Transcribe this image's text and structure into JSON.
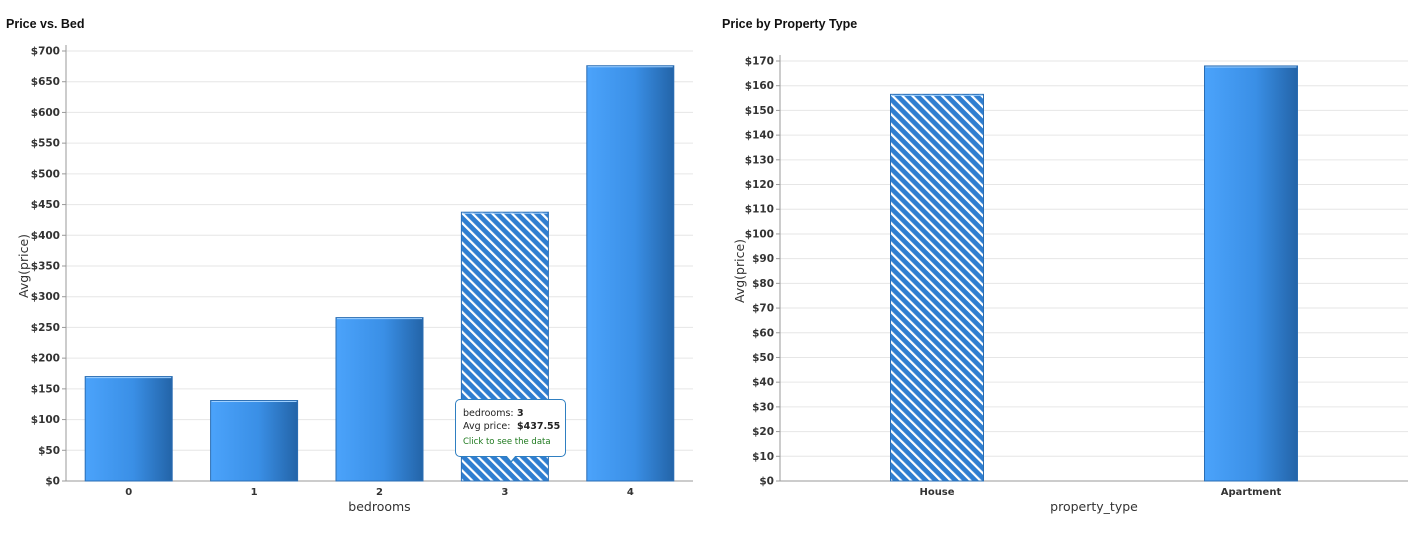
{
  "chart_data": [
    {
      "type": "bar",
      "title": "Price vs. Bed",
      "xlabel": "bedrooms",
      "ylabel": "Avg(price)",
      "categories": [
        "0",
        "1",
        "2",
        "3",
        "4"
      ],
      "values": [
        170,
        131,
        266,
        437.55,
        676
      ],
      "ylim": [
        0,
        700
      ],
      "yticks": [
        "$0",
        "$50",
        "$100",
        "$150",
        "$200",
        "$250",
        "$300",
        "$350",
        "$400",
        "$450",
        "$500",
        "$550",
        "$600",
        "$650",
        "$700"
      ],
      "highlighted_index": 3,
      "grid": true
    },
    {
      "type": "bar",
      "title": "Price by Property Type",
      "xlabel": "property_type",
      "ylabel": "Avg(price)",
      "categories": [
        "House",
        "Apartment"
      ],
      "values": [
        156.5,
        168
      ],
      "ylim": [
        0,
        170
      ],
      "yticks": [
        "$0",
        "$10",
        "$20",
        "$30",
        "$40",
        "$50",
        "$60",
        "$70",
        "$80",
        "$90",
        "$100",
        "$110",
        "$120",
        "$130",
        "$140",
        "$150",
        "$160",
        "$170"
      ],
      "highlighted_index": 0,
      "grid": true
    }
  ],
  "tooltip": {
    "key1": "bedrooms:",
    "val1": "3",
    "key2": "Avg price:",
    "val2": "$437.55",
    "link": "Click to see the data"
  },
  "colors": {
    "bar_light": "#4ba3fb",
    "bar_dark": "#2364a8",
    "hatch_bg": "#2f7ed0",
    "hatch_stripe": "#ffffff"
  }
}
